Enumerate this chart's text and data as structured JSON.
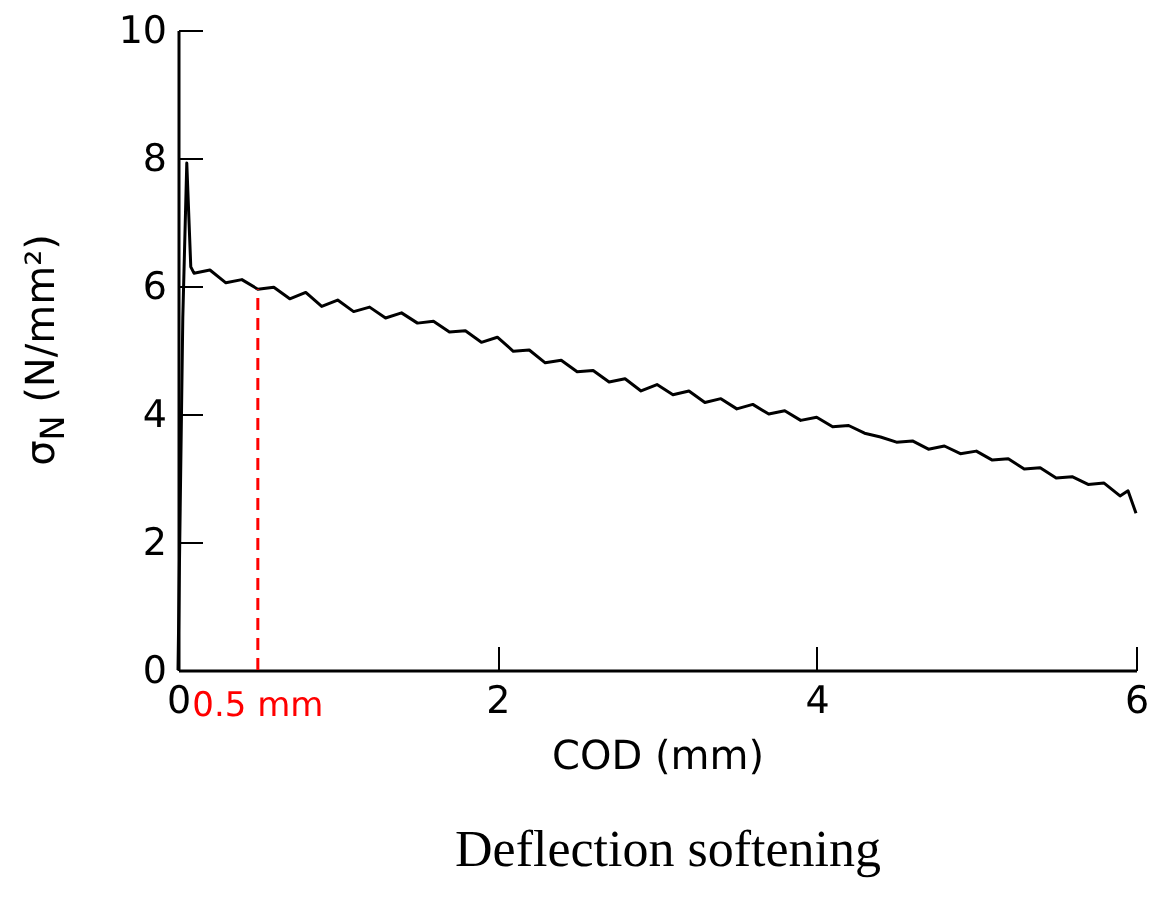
{
  "chart_data": {
    "type": "line",
    "xlabel": "COD (mm)",
    "ylabel": "σ$_{N}$ (N/mm²)",
    "annotations": [
      "Deflection softening"
    ],
    "x": [
      0,
      0.03,
      0.055,
      0.08,
      0.1,
      0.2,
      0.3,
      0.4,
      0.5,
      0.6,
      0.7,
      0.8,
      0.9,
      1.0,
      1.1,
      1.2,
      1.3,
      1.4,
      1.5,
      1.6,
      1.7,
      1.8,
      1.9,
      2.0,
      2.1,
      2.2,
      2.3,
      2.4,
      2.5,
      2.6,
      2.7,
      2.8,
      2.9,
      3.0,
      3.1,
      3.2,
      3.3,
      3.4,
      3.5,
      3.6,
      3.7,
      3.8,
      3.9,
      4.0,
      4.1,
      4.2,
      4.3,
      4.4,
      4.5,
      4.6,
      4.7,
      4.8,
      4.9,
      5.0,
      5.1,
      5.2,
      5.3,
      5.4,
      5.5,
      5.6,
      5.7,
      5.8,
      5.9,
      5.95,
      6.0
    ],
    "series": [
      {
        "color": "#000000",
        "values": [
          0,
          5.5,
          7.92,
          6.3,
          6.2,
          6.25,
          6.05,
          6.1,
          5.95,
          5.98,
          5.8,
          5.9,
          5.68,
          5.78,
          5.6,
          5.67,
          5.5,
          5.58,
          5.42,
          5.45,
          5.28,
          5.3,
          5.12,
          5.2,
          4.98,
          5.0,
          4.8,
          4.84,
          4.66,
          4.68,
          4.5,
          4.55,
          4.36,
          4.46,
          4.3,
          4.36,
          4.18,
          4.24,
          4.08,
          4.15,
          4.0,
          4.05,
          3.9,
          3.95,
          3.8,
          3.82,
          3.7,
          3.64,
          3.56,
          3.58,
          3.45,
          3.5,
          3.38,
          3.42,
          3.28,
          3.3,
          3.14,
          3.16,
          3.0,
          3.02,
          2.9,
          2.92,
          2.72,
          2.8,
          2.45
        ]
      }
    ],
    "xlim": [
      0,
      6
    ],
    "ylim": [
      0,
      10
    ],
    "xticks": [
      0,
      2,
      4,
      6
    ],
    "yticks": [
      0,
      2,
      4,
      6,
      8,
      10
    ],
    "grid": false,
    "ref_lines": [
      {
        "axis": "x",
        "value": 0.5,
        "label": "0.5 mm",
        "color": "#ff0000",
        "line_style": "dashed"
      }
    ]
  }
}
